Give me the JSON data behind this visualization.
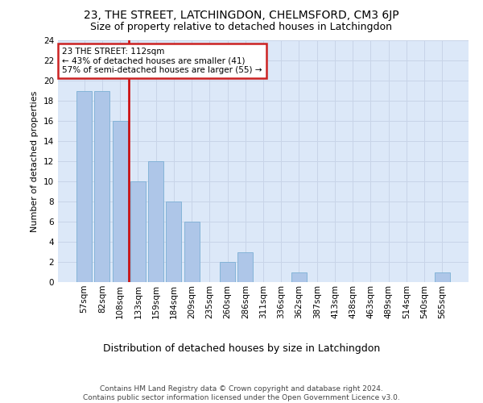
{
  "title": "23, THE STREET, LATCHINGDON, CHELMSFORD, CM3 6JP",
  "subtitle": "Size of property relative to detached houses in Latchingdon",
  "xlabel": "Distribution of detached houses by size in Latchingdon",
  "ylabel": "Number of detached properties",
  "categories": [
    "57sqm",
    "82sqm",
    "108sqm",
    "133sqm",
    "159sqm",
    "184sqm",
    "209sqm",
    "235sqm",
    "260sqm",
    "286sqm",
    "311sqm",
    "336sqm",
    "362sqm",
    "387sqm",
    "413sqm",
    "438sqm",
    "463sqm",
    "489sqm",
    "514sqm",
    "540sqm",
    "565sqm"
  ],
  "values": [
    19,
    19,
    16,
    10,
    12,
    8,
    6,
    0,
    2,
    3,
    0,
    0,
    1,
    0,
    0,
    0,
    0,
    0,
    0,
    0,
    1
  ],
  "bar_color": "#aec6e8",
  "bar_edge_color": "#7bafd4",
  "highlight_bar_index": 2,
  "highlight_line_color": "#cc0000",
  "annotation_text": "23 THE STREET: 112sqm\n← 43% of detached houses are smaller (41)\n57% of semi-detached houses are larger (55) →",
  "annotation_box_color": "#ffffff",
  "annotation_box_edge_color": "#cc2222",
  "ylim": [
    0,
    24
  ],
  "yticks": [
    0,
    2,
    4,
    6,
    8,
    10,
    12,
    14,
    16,
    18,
    20,
    22,
    24
  ],
  "grid_color": "#c8d4e8",
  "background_color": "#dce8f8",
  "footer_text": "Contains HM Land Registry data © Crown copyright and database right 2024.\nContains public sector information licensed under the Open Government Licence v3.0.",
  "title_fontsize": 10,
  "subtitle_fontsize": 9,
  "xlabel_fontsize": 9,
  "ylabel_fontsize": 8,
  "tick_fontsize": 7.5,
  "annotation_fontsize": 7.5,
  "footer_fontsize": 6.5
}
